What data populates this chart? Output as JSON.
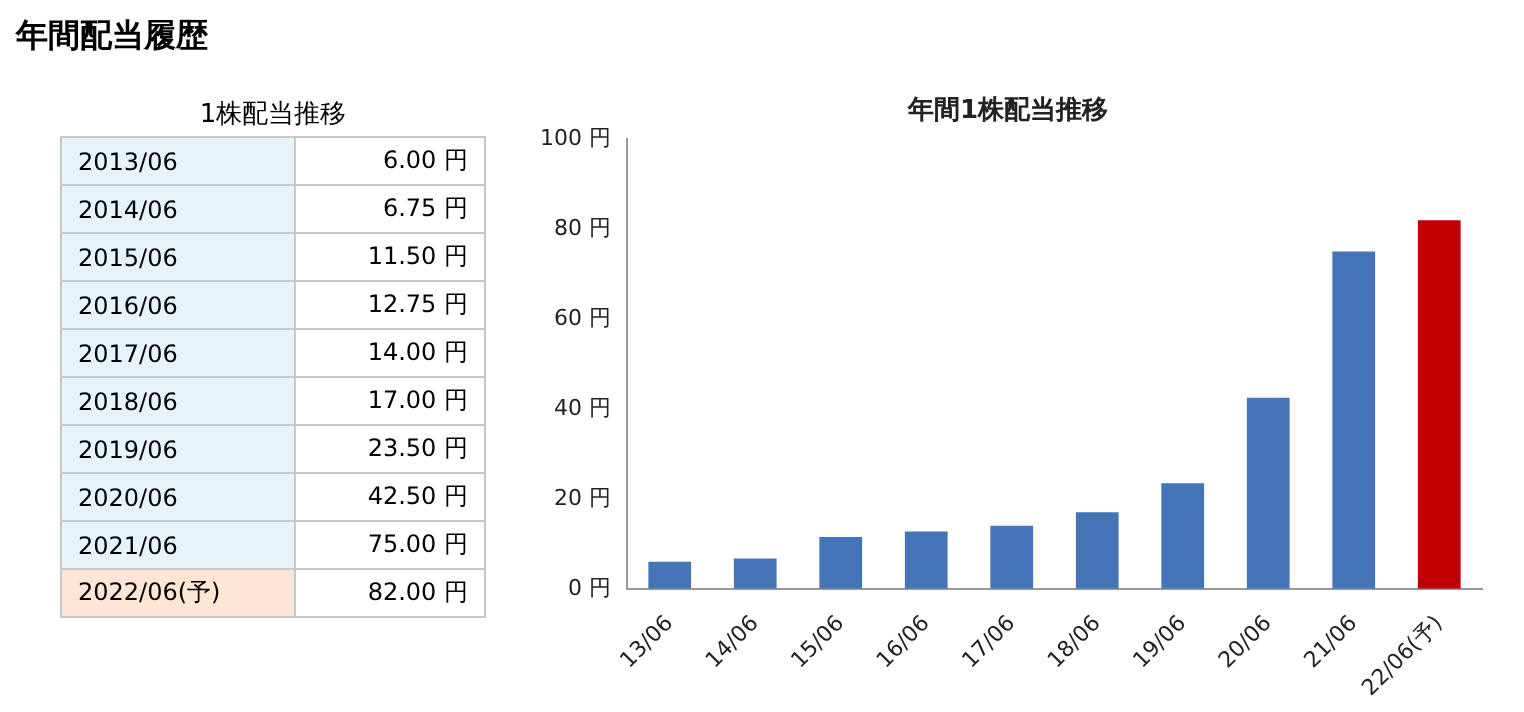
{
  "chart_data": [
    {
      "type": "other",
      "title": "年間配当履歴",
      "subtitle": "1株配当推移",
      "categories": [
        "2013/06",
        "2014/06",
        "2015/06",
        "2016/06",
        "2017/06",
        "2018/06",
        "2019/06",
        "2020/06",
        "2021/06",
        "2022/06(予)"
      ],
      "value_labels": [
        "6.00 円",
        "6.75 円",
        "11.50 円",
        "12.75 円",
        "14.00 円",
        "17.00 円",
        "23.50 円",
        "42.50 円",
        "75.00 円",
        "82.00 円"
      ],
      "colors": [
        "#e6f3f8",
        "#e6f3f8",
        "#e6f3f8",
        "#e6f3f8",
        "#e6f3f8",
        "#e6f3f8",
        "#e6f3f8",
        "#e6f3f8",
        "#e6f3f8",
        "#fde6d6"
      ]
    },
    {
      "type": "bar",
      "title": "年間1株配当推移",
      "categories": [
        "13/06",
        "14/06",
        "15/06",
        "16/06",
        "17/06",
        "18/06",
        "19/06",
        "20/06",
        "21/06",
        "22/06(予)"
      ],
      "values": [
        6,
        6.75,
        11.5,
        12.75,
        14,
        17,
        23.5,
        42.5,
        75,
        82
      ],
      "colors": [
        "#4674b8",
        "#4674b8",
        "#4674b8",
        "#4674b8",
        "#4674b8",
        "#4674b8",
        "#4674b8",
        "#4674b8",
        "#4674b8",
        "#c00000"
      ],
      "ylim": [
        0,
        100
      ],
      "yticks": [
        {
          "value": 0,
          "label": "0 円"
        },
        {
          "value": 20,
          "label": "20 円"
        },
        {
          "value": 40,
          "label": "40 円"
        },
        {
          "value": 60,
          "label": "60 円"
        },
        {
          "value": 80,
          "label": "80 円"
        },
        {
          "value": 100,
          "label": "100 円"
        }
      ],
      "grid": false,
      "legend": false
    }
  ]
}
